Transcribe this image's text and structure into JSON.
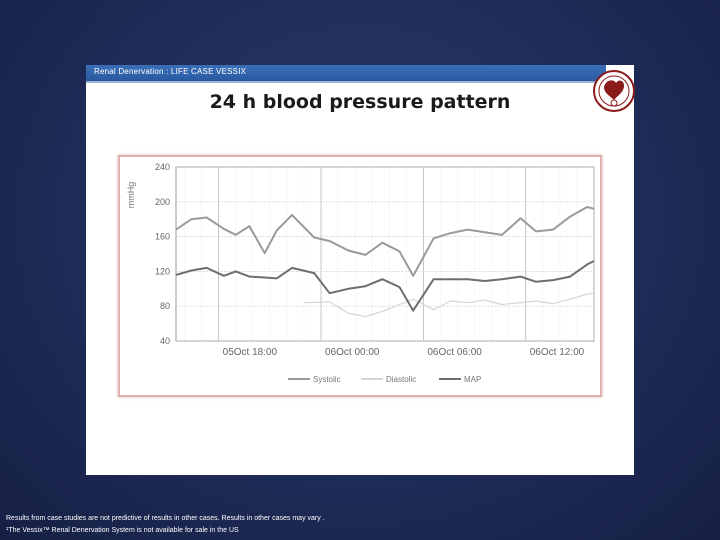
{
  "slide": {
    "header": "Renal Denervation : LIFE CASE VESSIX",
    "title": "24 h blood pressure pattern",
    "footnote1": "Results from case studies are not predictive of results in other cases.  Results in other cases may vary .",
    "footnote2": "¹The Vessix™ Renal Denervation System is not available for sale in the US",
    "logo": "society-seal-icon"
  },
  "chart_data": {
    "type": "line",
    "title": "",
    "xlabel": "",
    "ylabel": "mmHg",
    "ylim": [
      40,
      240
    ],
    "yticks": [
      40,
      80,
      120,
      160,
      200,
      240
    ],
    "x_tick_labels": [
      "05Oct 18:00",
      "06Oct 00:00",
      "06Oct 06:00",
      "06Oct 12:00"
    ],
    "x_tick_hours": [
      18,
      24,
      30,
      36
    ],
    "x_range_hours": [
      15.5,
      40
    ],
    "grid": true,
    "legend": "bottom-center",
    "series": [
      {
        "name": "Systolic",
        "color": "#9a9a9a",
        "x": [
          15.5,
          16.4,
          17.3,
          18.3,
          19.0,
          19.8,
          20.7,
          21.4,
          22.3,
          23.6,
          24.5,
          25.6,
          26.6,
          27.6,
          28.6,
          29.4,
          30.6,
          31.6,
          32.6,
          33.6,
          34.6,
          35.7,
          36.6,
          37.6,
          38.6,
          39.6,
          40.0
        ],
        "values": [
          168,
          180,
          182,
          169,
          162,
          172,
          141,
          167,
          185,
          159,
          155,
          144,
          139,
          153,
          143,
          115,
          158,
          164,
          168,
          165,
          162,
          181,
          166,
          168,
          183,
          194,
          192
        ]
      },
      {
        "name": "Diastolic",
        "color": "#d4d4d4",
        "x": [
          23.0,
          24.5,
          25.6,
          26.6,
          27.6,
          28.6,
          29.4,
          30.6,
          31.6,
          32.6,
          33.6,
          34.6,
          35.7,
          36.6,
          37.6,
          38.6,
          39.6,
          40.0
        ],
        "values": [
          84,
          85,
          72,
          68,
          74,
          82,
          88,
          76,
          86,
          84,
          87,
          82,
          84,
          86,
          83,
          88,
          94,
          95
        ]
      },
      {
        "name": "MAP",
        "color": "#6e6e6e",
        "x": [
          15.5,
          16.4,
          17.3,
          18.3,
          19.0,
          19.8,
          20.7,
          21.4,
          22.3,
          23.6,
          24.5,
          25.6,
          26.6,
          27.6,
          28.6,
          29.4,
          30.6,
          31.6,
          32.6,
          33.6,
          34.6,
          35.7,
          36.6,
          37.6,
          38.6,
          39.6,
          40.0
        ],
        "values": [
          116,
          121,
          124,
          115,
          120,
          114,
          113,
          112,
          124,
          118,
          95,
          100,
          103,
          111,
          102,
          75,
          111,
          111,
          111,
          109,
          111,
          114,
          108,
          110,
          114,
          128,
          132
        ]
      }
    ]
  }
}
